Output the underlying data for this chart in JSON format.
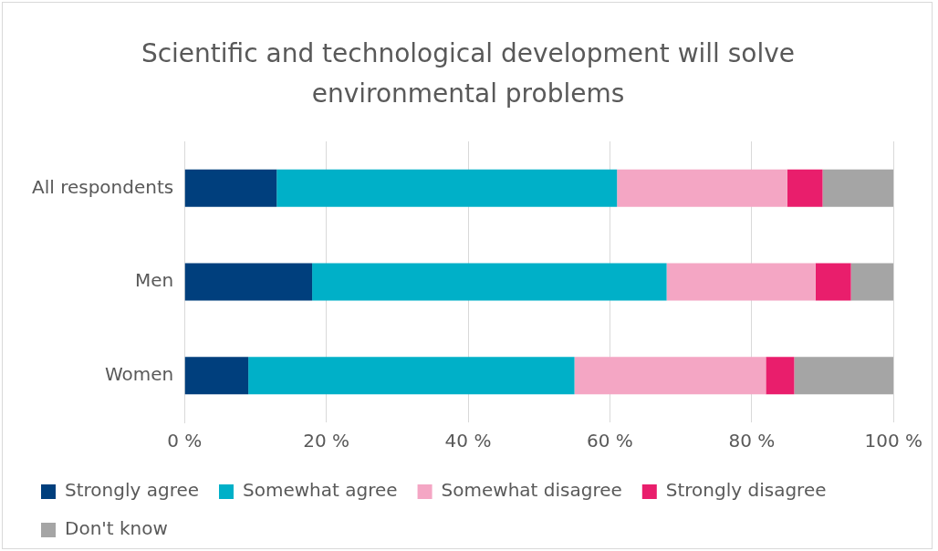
{
  "chart_data": {
    "type": "bar",
    "title": "Scientific and technological development will solve environmental problems",
    "orientation": "horizontal",
    "stacked": true,
    "categories": [
      "All respondents",
      "Men",
      "Women"
    ],
    "series": [
      {
        "name": "Strongly agree",
        "color": "#003f7d",
        "values": [
          13,
          18,
          9
        ]
      },
      {
        "name": "Somewhat agree",
        "color": "#00b0c8",
        "values": [
          48,
          50,
          46
        ]
      },
      {
        "name": "Somewhat disagree",
        "color": "#f4a6c4",
        "values": [
          24,
          21,
          27
        ]
      },
      {
        "name": "Strongly disagree",
        "color": "#e91e6c",
        "values": [
          5,
          5,
          4
        ]
      },
      {
        "name": "Don't know",
        "color": "#a5a5a5",
        "values": [
          10,
          6,
          14
        ]
      }
    ],
    "xlim": [
      0,
      100
    ],
    "xticks": [
      {
        "value": 0,
        "label": "0 %"
      },
      {
        "value": 20,
        "label": "20 %"
      },
      {
        "value": 40,
        "label": "40 %"
      },
      {
        "value": 60,
        "label": "60 %"
      },
      {
        "value": 80,
        "label": "80 %"
      },
      {
        "value": 100,
        "label": "100 %"
      }
    ],
    "grid": "x",
    "legend": "bottom"
  }
}
